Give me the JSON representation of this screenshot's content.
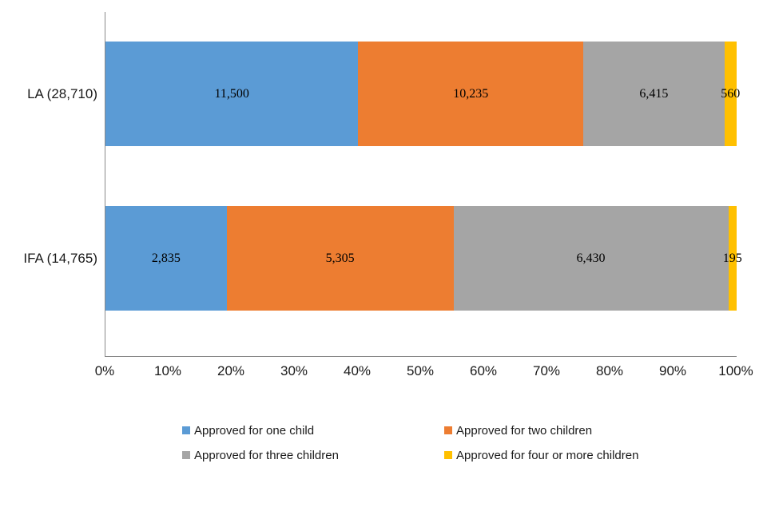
{
  "chart_data": {
    "type": "bar",
    "orientation": "horizontal",
    "stacked": true,
    "x_mode": "percent_of_category_total",
    "title": "",
    "xlabel": "",
    "ylabel": "",
    "grid": false,
    "categories": [
      {
        "label": "LA (28,710)",
        "total": 28710
      },
      {
        "label": "IFA (14,765)",
        "total": 14765
      }
    ],
    "series": [
      {
        "name": "Approved for one child",
        "color": "#5B9BD5",
        "values": [
          11500,
          2835
        ],
        "labels": [
          "11,500",
          "2,835"
        ]
      },
      {
        "name": "Approved for two children",
        "color": "#ED7D31",
        "values": [
          10235,
          5305
        ],
        "labels": [
          "10,235",
          "5,305"
        ]
      },
      {
        "name": "Approved for three children",
        "color": "#A5A5A5",
        "values": [
          6415,
          6430
        ],
        "labels": [
          "6,415",
          "6,430"
        ]
      },
      {
        "name": "Approved for four or more children",
        "color": "#FFC000",
        "values": [
          560,
          195
        ],
        "labels": [
          "560",
          "195"
        ]
      }
    ],
    "x_axis": {
      "min": 0,
      "max": 100,
      "ticks": [
        "0%",
        "10%",
        "20%",
        "30%",
        "40%",
        "50%",
        "60%",
        "70%",
        "80%",
        "90%",
        "100%"
      ]
    },
    "legend": {
      "position": "bottom",
      "columns": 2,
      "entries": [
        "Approved for one child",
        "Approved for two children",
        "Approved for three children",
        "Approved for four or more children"
      ]
    },
    "axis_line_color": "#898989"
  }
}
